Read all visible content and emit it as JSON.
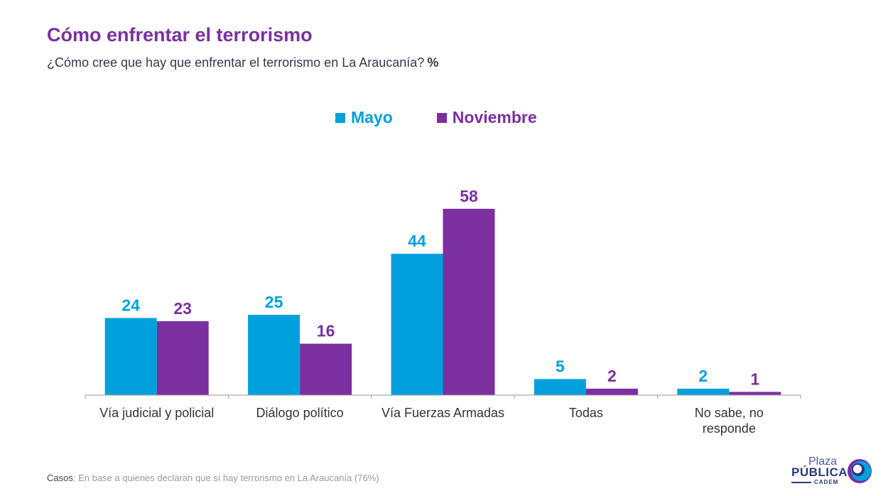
{
  "header": {
    "title": "Cómo enfrentar el terrorismo",
    "subtitle": "¿Cómo cree que hay que enfrentar el terrorismo en La Araucanía?",
    "unit": "%"
  },
  "colors": {
    "title": "#7b2fa0",
    "mayo": "#00a0dc",
    "noviembre": "#7b2fa0"
  },
  "chart_data": {
    "type": "bar",
    "categories": [
      [
        "Vía judicial y policial"
      ],
      [
        "Diálogo político"
      ],
      [
        "Vía Fuerzas Armadas"
      ],
      [
        "Todas"
      ],
      [
        "No sabe, no",
        "responde"
      ]
    ],
    "series": [
      {
        "name": "Mayo",
        "color": "#00a0dc",
        "values": [
          24,
          25,
          44,
          5,
          2
        ]
      },
      {
        "name": "Noviembre",
        "color": "#7b2fa0",
        "values": [
          23,
          16,
          58,
          2,
          1
        ]
      }
    ],
    "legend": "top-center",
    "grid": false
  },
  "footnote": {
    "lead": "Casos",
    "text": ": En base a quienes declaran que sí hay terrorismo en La Araucanía (76%)"
  },
  "logo": {
    "line1": "Plaza",
    "line2": "PÚBLICA",
    "line3": "CADEM"
  }
}
